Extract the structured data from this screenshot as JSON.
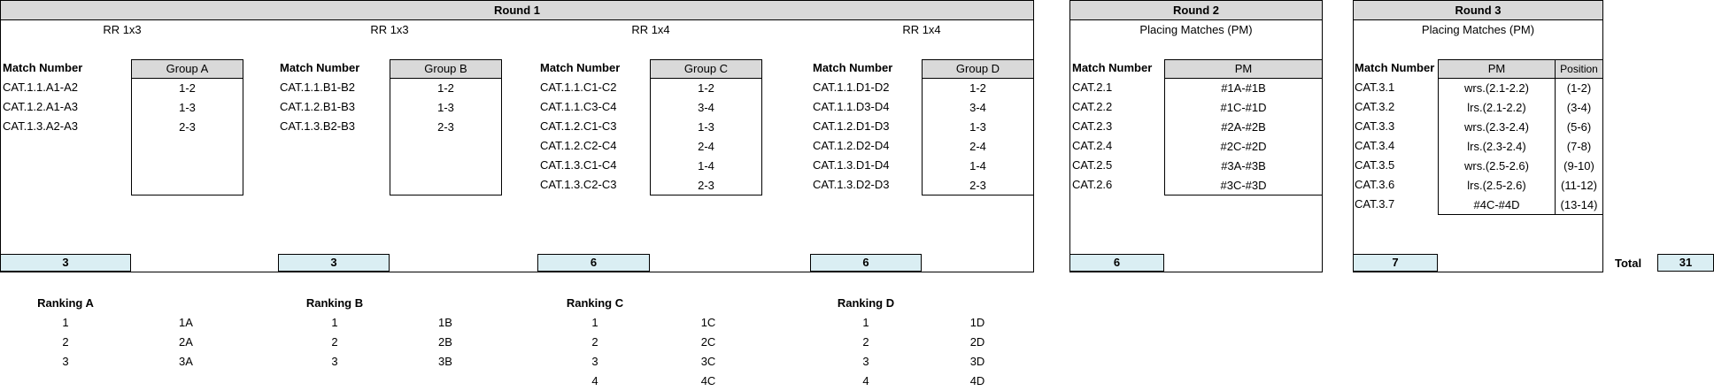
{
  "round1": {
    "title": "Round 1",
    "match_number_label": "Match Number",
    "groups": [
      {
        "format": "RR 1x3",
        "header": "Group A",
        "matches": [
          "CAT.1.1.A1-A2",
          "CAT.1.2.A1-A3",
          "CAT.1.3.A2-A3"
        ],
        "pairs": [
          "1-2",
          "1-3",
          "2-3"
        ],
        "count": "3"
      },
      {
        "format": "RR 1x3",
        "header": "Group B",
        "matches": [
          "CAT.1.1.B1-B2",
          "CAT.1.2.B1-B3",
          "CAT.1.3.B2-B3"
        ],
        "pairs": [
          "1-2",
          "1-3",
          "2-3"
        ],
        "count": "3"
      },
      {
        "format": "RR 1x4",
        "header": "Group C",
        "matches": [
          "CAT.1.1.C1-C2",
          "CAT.1.1.C3-C4",
          "CAT.1.2.C1-C3",
          "CAT.1.2.C2-C4",
          "CAT.1.3.C1-C4",
          "CAT.1.3.C2-C3"
        ],
        "pairs": [
          "1-2",
          "3-4",
          "1-3",
          "2-4",
          "1-4",
          "2-3"
        ],
        "count": "6"
      },
      {
        "format": "RR 1x4",
        "header": "Group D",
        "matches": [
          "CAT.1.1.D1-D2",
          "CAT.1.1.D3-D4",
          "CAT.1.2.D1-D3",
          "CAT.1.2.D2-D4",
          "CAT.1.3.D1-D4",
          "CAT.1.3.D2-D3"
        ],
        "pairs": [
          "1-2",
          "3-4",
          "1-3",
          "2-4",
          "1-4",
          "2-3"
        ],
        "count": "6"
      }
    ]
  },
  "round2": {
    "title": "Round 2",
    "subtitle": "Placing Matches (PM)",
    "match_number_label": "Match Number",
    "pm_header": "PM",
    "matches": [
      "CAT.2.1",
      "CAT.2.2",
      "CAT.2.3",
      "CAT.2.4",
      "CAT.2.5",
      "CAT.2.6"
    ],
    "pm": [
      "#1A-#1B",
      "#1C-#1D",
      "#2A-#2B",
      "#2C-#2D",
      "#3A-#3B",
      "#3C-#3D"
    ],
    "count": "6"
  },
  "round3": {
    "title": "Round 3",
    "subtitle": "Placing Matches (PM)",
    "match_number_label": "Match Number",
    "pm_header": "PM",
    "position_header": "Position",
    "matches": [
      "CAT.3.1",
      "CAT.3.2",
      "CAT.3.3",
      "CAT.3.4",
      "CAT.3.5",
      "CAT.3.6",
      "CAT.3.7"
    ],
    "pm": [
      "wrs.(2.1-2.2)",
      "lrs.(2.1-2.2)",
      "wrs.(2.3-2.4)",
      "lrs.(2.3-2.4)",
      "wrs.(2.5-2.6)",
      "lrs.(2.5-2.6)",
      "#4C-#4D"
    ],
    "positions": [
      "(1-2)",
      "(3-4)",
      "(5-6)",
      "(7-8)",
      "(9-10)",
      "(11-12)",
      "(13-14)"
    ],
    "count": "7"
  },
  "total": {
    "label": "Total",
    "value": "31"
  },
  "rankings": [
    {
      "title": "Ranking A",
      "ranks": [
        "1",
        "2",
        "3"
      ],
      "codes": [
        "1A",
        "2A",
        "3A"
      ]
    },
    {
      "title": "Ranking B",
      "ranks": [
        "1",
        "2",
        "3"
      ],
      "codes": [
        "1B",
        "2B",
        "3B"
      ]
    },
    {
      "title": "Ranking C",
      "ranks": [
        "1",
        "2",
        "3",
        "4"
      ],
      "codes": [
        "1C",
        "2C",
        "3C",
        "4C"
      ]
    },
    {
      "title": "Ranking D",
      "ranks": [
        "1",
        "2",
        "3",
        "4"
      ],
      "codes": [
        "1D",
        "2D",
        "3D",
        "4D"
      ]
    }
  ]
}
